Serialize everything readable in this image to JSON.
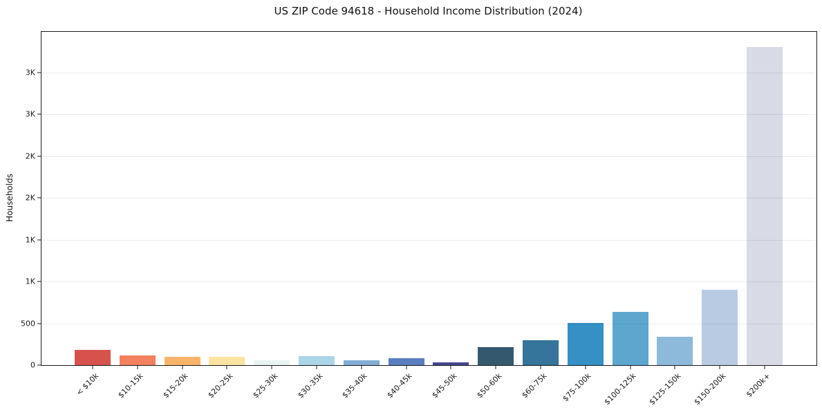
{
  "chart_data": {
    "type": "bar",
    "title": "US ZIP Code 94618 - Household Income Distribution (2024)",
    "xlabel": "",
    "ylabel": "Households",
    "categories": [
      "< $10k",
      "$10-15k",
      "$15-20k",
      "$20-25k",
      "$25-30k",
      "$30-35k",
      "$35-40k",
      "$40-45k",
      "$45-50k",
      "$50-60k",
      "$60-75k",
      "$75-100k",
      "$100-125k",
      "$125-150k",
      "$150-200k",
      "$200k+"
    ],
    "values": [
      185,
      115,
      100,
      100,
      55,
      105,
      60,
      80,
      30,
      215,
      300,
      505,
      640,
      340,
      900,
      3800
    ],
    "bar_colors": [
      "#d8524d",
      "#f3815e",
      "#f9b469",
      "#fbe3a1",
      "#e7f4f1",
      "#abd5e8",
      "#82aed5",
      "#5a7fc0",
      "#45458f",
      "#34596e",
      "#35749b",
      "#3590c5",
      "#5ca7ce",
      "#8db9da",
      "#b8cbe3",
      "#d8dae6"
    ],
    "ylim": [
      0,
      3985
    ],
    "yticks": {
      "values": [
        0,
        500,
        1000,
        1500,
        2000,
        2500,
        3000,
        3500
      ],
      "labels": [
        "0",
        "500",
        "1K",
        "1K",
        "2K",
        "2K",
        "3K",
        "3K"
      ]
    },
    "grid": "horizontal-light",
    "legend": "none",
    "x_tick_rotation_deg": 45,
    "background_color": "#ffffff",
    "axis_color": "#1a1a1a"
  }
}
